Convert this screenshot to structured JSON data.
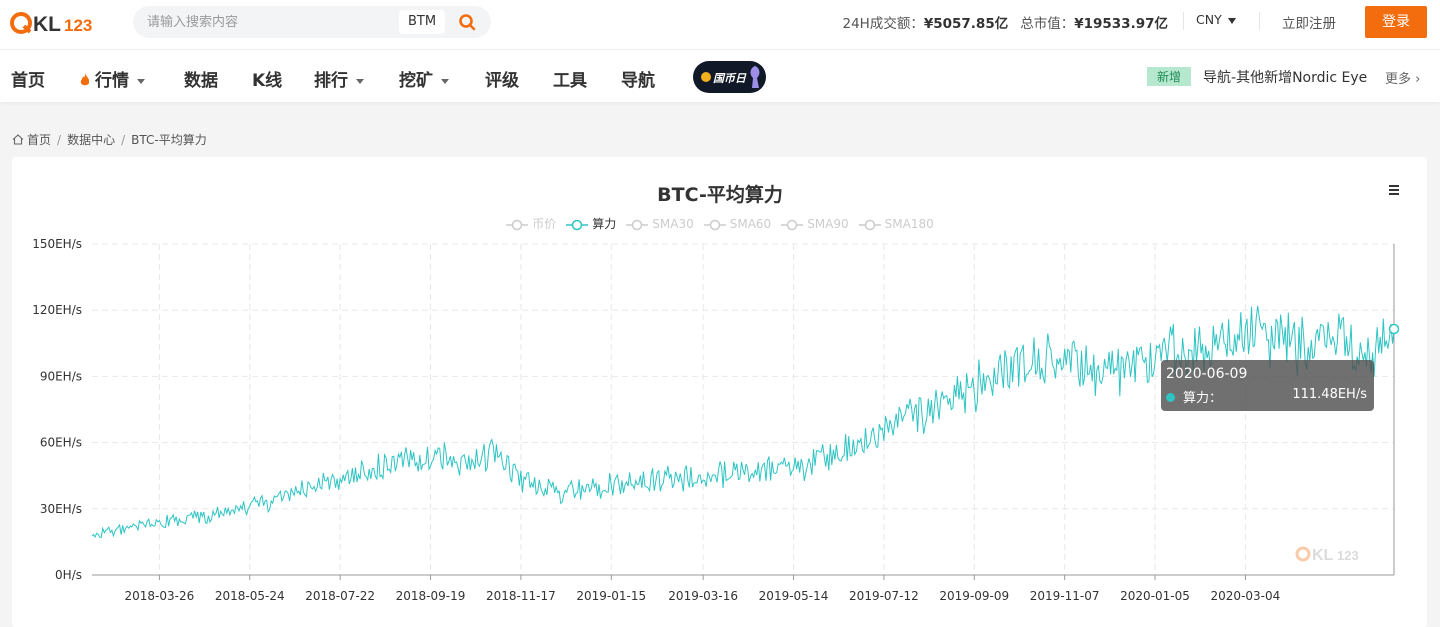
{
  "brand": {
    "logo_text": "QKL123"
  },
  "search": {
    "placeholder": "请输入搜索内容",
    "hot_coin": "BTM"
  },
  "stats": {
    "volume_label": "24H成交额：",
    "volume_value": "¥5057.85亿",
    "mcap_label": "总市值：",
    "mcap_value": "¥19533.97亿"
  },
  "currency": "CNY",
  "auth": {
    "register": "立即注册",
    "login": "登录"
  },
  "nav": {
    "home": "首页",
    "market": "行情",
    "data": "数据",
    "kline": "K线",
    "rank": "排行",
    "mining": "挖矿",
    "rating": "评级",
    "tools": "工具",
    "guide": "导航",
    "promo": "国币日"
  },
  "news": {
    "tag": "新增",
    "text": "导航-其他新增Nordic Eye",
    "more": "更多"
  },
  "breadcrumb": {
    "home": "首页",
    "data_center": "数据中心",
    "current": "BTC-平均算力"
  },
  "colors": {
    "accent": "#f36c0e",
    "line": "#2ec4c4",
    "legend_inactive": "#cccccc"
  },
  "chart_data": {
    "type": "line",
    "title": "BTC-平均算力",
    "legend": [
      {
        "name": "币价",
        "active": false
      },
      {
        "name": "算力",
        "active": true
      },
      {
        "name": "SMA30",
        "active": false
      },
      {
        "name": "SMA60",
        "active": false
      },
      {
        "name": "SMA90",
        "active": false
      },
      {
        "name": "SMA180",
        "active": false
      }
    ],
    "y_ticks": [
      "0H/s",
      "30EH/s",
      "60EH/s",
      "90EH/s",
      "120EH/s",
      "150EH/s"
    ],
    "ylim": [
      0,
      150
    ],
    "y_unit": "EH/s",
    "x_ticks": [
      "2018-03-26",
      "2018-05-24",
      "2018-07-22",
      "2018-09-19",
      "2018-11-17",
      "2019-01-15",
      "2019-03-16",
      "2019-05-14",
      "2019-07-12",
      "2019-09-09",
      "2019-11-07",
      "2020-01-05",
      "2020-03-04"
    ],
    "series": [
      {
        "name": "算力",
        "x": [
          "2018-02-10",
          "2018-03-01",
          "2018-03-26",
          "2018-04-25",
          "2018-05-24",
          "2018-06-23",
          "2018-07-22",
          "2018-08-21",
          "2018-09-19",
          "2018-10-18",
          "2018-11-01",
          "2018-11-17",
          "2018-12-15",
          "2019-01-15",
          "2019-02-15",
          "2019-03-16",
          "2019-04-15",
          "2019-05-14",
          "2019-06-12",
          "2019-07-12",
          "2019-08-10",
          "2019-09-09",
          "2019-10-08",
          "2019-11-07",
          "2019-12-06",
          "2020-01-05",
          "2020-02-05",
          "2020-03-04",
          "2020-04-03",
          "2020-05-03",
          "2020-05-20",
          "2020-06-09"
        ],
        "values": [
          18,
          21,
          24,
          27,
          31,
          37,
          44,
          50,
          53,
          51,
          56,
          43,
          37,
          41,
          43,
          44,
          47,
          48,
          56,
          65,
          75,
          84,
          96,
          98,
          92,
          99,
          104,
          108,
          104,
          110,
          96,
          111.48
        ]
      }
    ],
    "tooltip": {
      "date": "2020-06-09",
      "series": "算力：",
      "value": "111.48EH/s"
    },
    "grid": true,
    "legend_position": "top-center"
  }
}
